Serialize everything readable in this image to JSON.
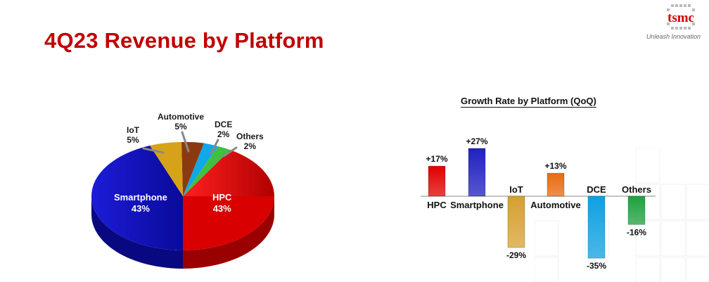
{
  "slide": {
    "title": "4Q23 Revenue by Platform"
  },
  "logo": {
    "brand": "tsmc",
    "tagline": "Unleash Innovation"
  },
  "colors": {
    "title_red": "#c00000",
    "hpc": "#e00000",
    "smartphone": "#1010c8",
    "iot": "#d6a21a",
    "automotive": "#e86a10",
    "dce": "#10a8e8",
    "others": "#30b040"
  },
  "chart_data": [
    {
      "type": "pie",
      "style": "3d",
      "slices": [
        {
          "label": "HPC",
          "value": 43,
          "value_text": "43%",
          "color": "#e00000"
        },
        {
          "label": "Smartphone",
          "value": 43,
          "value_text": "43%",
          "color": "#1010c8"
        },
        {
          "label": "IoT",
          "value": 5,
          "value_text": "5%",
          "color": "#d6a21a"
        },
        {
          "label": "Automotive",
          "value": 5,
          "value_text": "5%",
          "color": "#8b3a10"
        },
        {
          "label": "DCE",
          "value": 2,
          "value_text": "2%",
          "color": "#10a8e8"
        },
        {
          "label": "Others",
          "value": 2,
          "value_text": "2%",
          "color": "#40c040"
        }
      ]
    },
    {
      "type": "bar",
      "title": "Growth Rate by Platform (QoQ)",
      "categories": [
        "HPC",
        "Smartphone",
        "IoT",
        "Automotive",
        "DCE",
        "Others"
      ],
      "values": [
        17,
        27,
        -29,
        13,
        -35,
        -16
      ],
      "value_labels": [
        "+17%",
        "+27%",
        "-29%",
        "+13%",
        "-35%",
        "-16%"
      ],
      "colors": [
        "#e00000",
        "#2020c0",
        "#d6a030",
        "#e86a10",
        "#10a0e0",
        "#20a040"
      ],
      "ylim": [
        -38,
        30
      ],
      "grid": false,
      "legend": "none"
    }
  ]
}
